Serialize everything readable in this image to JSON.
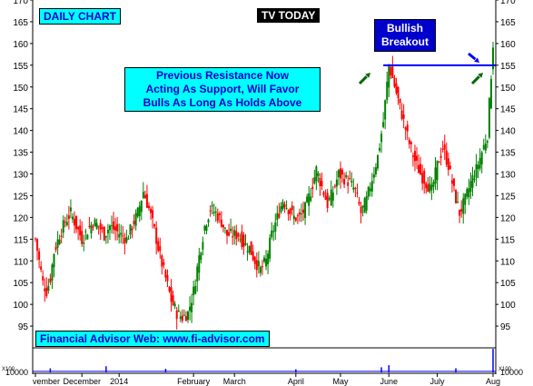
{
  "labels": {
    "daily_chart": "DAILY CHART",
    "channel": "TV TODAY",
    "breakout": [
      "Bullish",
      "Breakout"
    ],
    "support_note": [
      "Previous Resistance Now",
      "Acting As Support, Will Favor",
      "Bulls As Long As Holds Above"
    ],
    "advisor": "Financial Advisor Web: www.fi-advisor.com"
  },
  "colors": {
    "up": "#008000",
    "down": "#ff0000",
    "support_line": "#0000ff",
    "box_fill": "#00ffff",
    "breakout_box": "#0000cc",
    "arrow_green": "#006600",
    "arrow_blue": "#0000ff",
    "volume": "#0000ff"
  },
  "chart_data": {
    "type": "candlestick",
    "title": "",
    "xlabel": "",
    "ylabel": "",
    "ylim": [
      90,
      170
    ],
    "y_ticks": [
      95,
      100,
      105,
      110,
      115,
      120,
      125,
      130,
      135,
      140,
      145,
      150,
      155,
      160,
      165,
      170
    ],
    "x_tick_labels": [
      "vember",
      "December",
      "2014",
      "February",
      "March",
      "April",
      "May",
      "June",
      "July",
      "Aug"
    ],
    "volume_tick_label": "10000",
    "volume_axis_unit": "X100",
    "support_level": 155,
    "grid": false,
    "legend": "none",
    "series": [
      {
        "name": "",
        "waypoints": [
          [
            0,
            115
          ],
          [
            2,
            110
          ],
          [
            4,
            105
          ],
          [
            6,
            103
          ],
          [
            8,
            106
          ],
          [
            10,
            112
          ],
          [
            13,
            116
          ],
          [
            16,
            119
          ],
          [
            19,
            121
          ],
          [
            22,
            118
          ],
          [
            25,
            115
          ],
          [
            28,
            117
          ],
          [
            31,
            119
          ],
          [
            34,
            118
          ],
          [
            37,
            116
          ],
          [
            40,
            118
          ],
          [
            43,
            117
          ],
          [
            46,
            116
          ],
          [
            49,
            115
          ],
          [
            52,
            118
          ],
          [
            55,
            121
          ],
          [
            58,
            126
          ],
          [
            61,
            122
          ],
          [
            64,
            117
          ],
          [
            67,
            111
          ],
          [
            70,
            106
          ],
          [
            73,
            101
          ],
          [
            76,
            98
          ],
          [
            79,
            97
          ],
          [
            82,
            98
          ],
          [
            85,
            103
          ],
          [
            88,
            111
          ],
          [
            91,
            118
          ],
          [
            94,
            122
          ],
          [
            97,
            121
          ],
          [
            100,
            119
          ],
          [
            103,
            116
          ],
          [
            106,
            116
          ],
          [
            109,
            116
          ],
          [
            112,
            114
          ],
          [
            115,
            113
          ],
          [
            118,
            110
          ],
          [
            121,
            108
          ],
          [
            124,
            110
          ],
          [
            127,
            116
          ],
          [
            130,
            120
          ],
          [
            133,
            124
          ],
          [
            136,
            122
          ],
          [
            139,
            120
          ],
          [
            142,
            120
          ],
          [
            145,
            122
          ],
          [
            148,
            126
          ],
          [
            151,
            131
          ],
          [
            154,
            127
          ],
          [
            157,
            123
          ],
          [
            160,
            126
          ],
          [
            163,
            130
          ],
          [
            166,
            129
          ],
          [
            169,
            128
          ],
          [
            172,
            126
          ],
          [
            175,
            121
          ],
          [
            178,
            124
          ],
          [
            181,
            129
          ],
          [
            184,
            134
          ],
          [
            187,
            142
          ],
          [
            190,
            155
          ],
          [
            192,
            152
          ],
          [
            195,
            147
          ],
          [
            198,
            142
          ],
          [
            201,
            137
          ],
          [
            204,
            133
          ],
          [
            207,
            130
          ],
          [
            210,
            128
          ],
          [
            213,
            126
          ],
          [
            216,
            132
          ],
          [
            219,
            136
          ],
          [
            222,
            132
          ],
          [
            225,
            126
          ],
          [
            228,
            121
          ],
          [
            231,
            124
          ],
          [
            234,
            128
          ],
          [
            237,
            131
          ],
          [
            240,
            135
          ],
          [
            243,
            139
          ],
          [
            246,
            160
          ]
        ]
      }
    ],
    "volume": {
      "base": 10000,
      "spikes": [
        {
          "day": 8,
          "value": 13000
        },
        {
          "day": 38,
          "value": 15000
        },
        {
          "day": 70,
          "value": 12500
        },
        {
          "day": 140,
          "value": 12000
        },
        {
          "day": 186,
          "value": 14000
        },
        {
          "day": 190,
          "value": 16000
        },
        {
          "day": 226,
          "value": 13000
        },
        {
          "day": 246,
          "value": 32000
        }
      ]
    }
  }
}
